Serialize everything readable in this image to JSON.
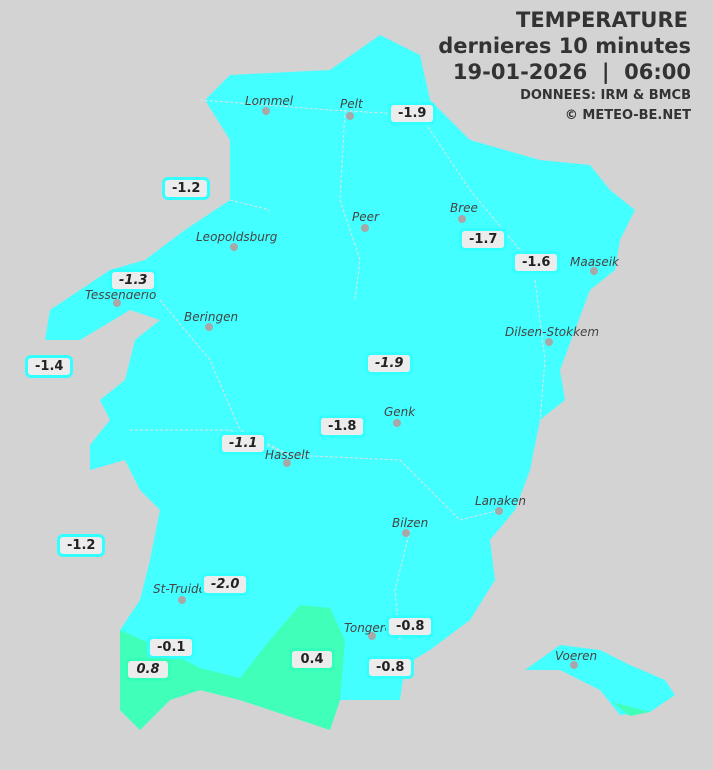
{
  "header": {
    "title": "TEMPERATURE",
    "subtitle": "dernieres 10 minutes",
    "datetime": "19-01-2026  |  06:00",
    "source": "DONNEES: IRM & BMCB",
    "copyright": "© METEO-BE.NET"
  },
  "colors": {
    "background": "#d3d3d3",
    "cold_zone": "#44ffff",
    "mild_zone": "#40ffb8",
    "label_bg": "#ececec"
  },
  "cities": [
    "Lommel",
    "Pelt",
    "Peer",
    "Bree",
    "Maaseik",
    "Leopoldsburg",
    "Tessenderlo",
    "Beringen",
    "Dilsen-Stokkem",
    "Genk",
    "Hasselt",
    "Lanaken",
    "Bilzen",
    "St-Truiden",
    "Tongeren",
    "Voeren"
  ],
  "readings": [
    "-1.9",
    "-1.2",
    "-1.7",
    "-1.6",
    "-1.3",
    "-1.4",
    "-1.9",
    "-1.8",
    "-1.1",
    "-1.2",
    "-2.0",
    "-0.1",
    "0.8",
    "0.4",
    "-0.8",
    "-0.8"
  ]
}
